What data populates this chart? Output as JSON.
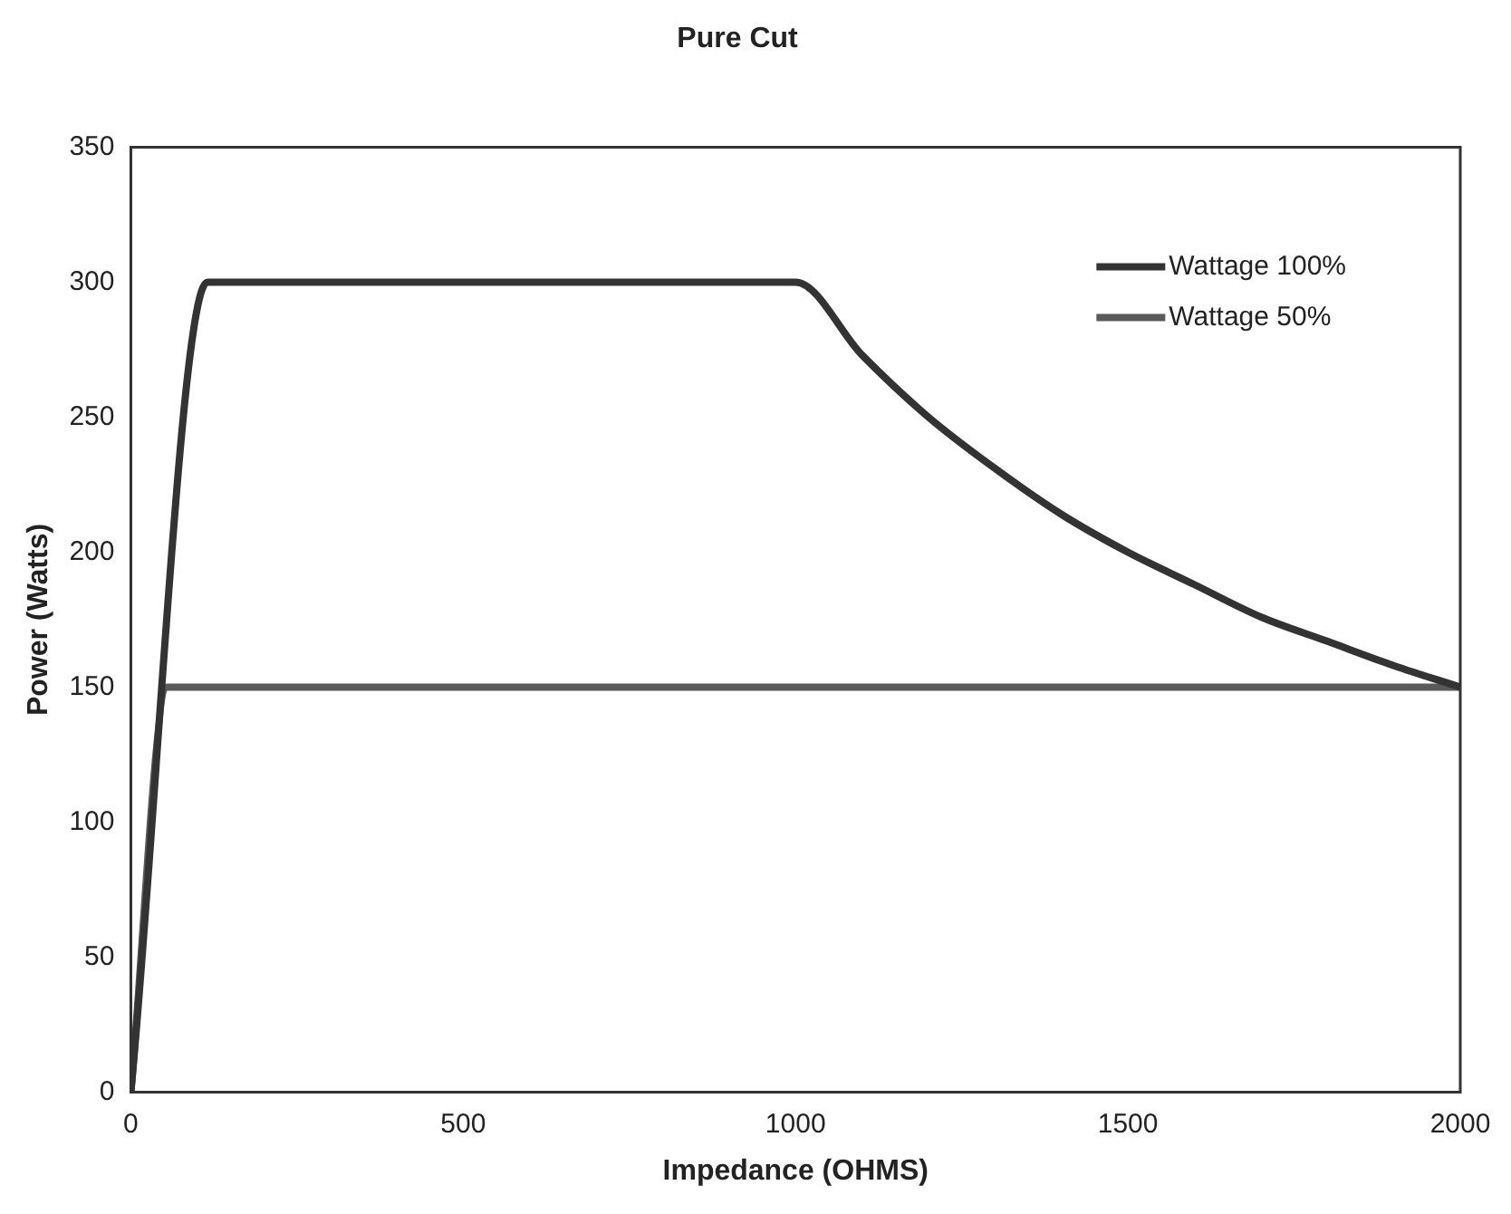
{
  "chart_data": {
    "type": "line",
    "title": "Pure Cut",
    "xlabel": "Impedance (OHMS)",
    "ylabel": "Power (Watts)",
    "xlim": [
      0,
      2000
    ],
    "xticks": [
      0,
      500,
      1000,
      1500,
      2000
    ],
    "ylim": [
      0,
      350
    ],
    "yticks": [
      0,
      50,
      100,
      150,
      200,
      250,
      300,
      350
    ],
    "grid": false,
    "legend": "top right",
    "marker": "none",
    "line_style": "solid",
    "series": [
      {
        "name": "Wattage 100%",
        "color": "#333333",
        "x": [
          0,
          115,
          1000,
          1100,
          1200,
          1300,
          1400,
          1500,
          1600,
          1700,
          1800,
          1900,
          2000
        ],
        "values": [
          0,
          300,
          300,
          273,
          250,
          231,
          214,
          200,
          188,
          176,
          167,
          158,
          150
        ]
      },
      {
        "name": "Wattage 50%",
        "color": "#5a5a5a",
        "x": [
          0,
          55,
          2000
        ],
        "values": [
          0,
          150,
          150
        ]
      }
    ]
  }
}
